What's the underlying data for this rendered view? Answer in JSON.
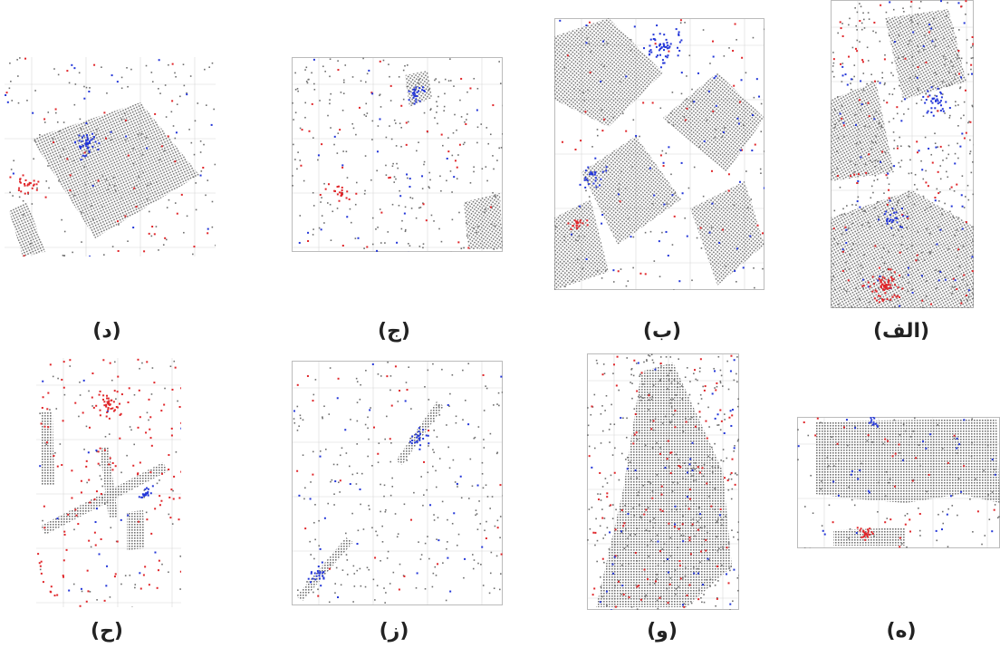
{
  "figure": {
    "panels": [
      {
        "id": "d",
        "label": "(د)"
      },
      {
        "id": "j",
        "label": "(ج)"
      },
      {
        "id": "b",
        "label": "(ب)"
      },
      {
        "id": "a",
        "label": "(الف)"
      },
      {
        "id": "h",
        "label": "(ح)"
      },
      {
        "id": "z",
        "label": "(ز)"
      },
      {
        "id": "v",
        "label": "(و)"
      },
      {
        "id": "e",
        "label": "(ه)"
      }
    ],
    "colors": {
      "building_points": "#6e6e6e",
      "error_red": "#e0262a",
      "error_blue": "#2336d8",
      "grid": "#d8d8d8"
    }
  }
}
